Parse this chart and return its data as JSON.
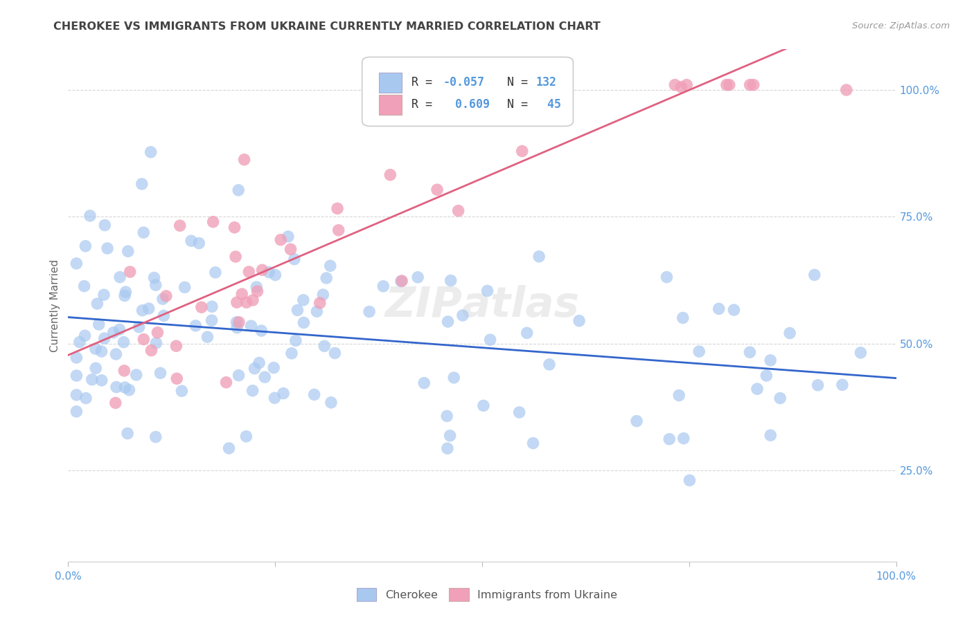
{
  "title": "CHEROKEE VS IMMIGRANTS FROM UKRAINE CURRENTLY MARRIED CORRELATION CHART",
  "source": "Source: ZipAtlas.com",
  "ylabel": "Currently Married",
  "r1": "-0.057",
  "n1": "132",
  "r2": "0.609",
  "n2": "45",
  "blue_color": "#A8C8F0",
  "pink_color": "#F0A0B8",
  "blue_line_color": "#3366CC",
  "pink_line_color": "#E06080",
  "grid_color": "#CCCCCC",
  "title_color": "#444444",
  "tick_color": "#5599DD",
  "source_color": "#999999",
  "background_color": "#FFFFFF",
  "legend_label1": "Cherokee",
  "legend_label2": "Immigrants from Ukraine",
  "xlim": [
    0.0,
    1.0
  ],
  "ylim": [
    0.07,
    1.08
  ],
  "ytick_vals": [
    0.25,
    0.5,
    0.75,
    1.0
  ],
  "ytick_labels": [
    "25.0%",
    "50.0%",
    "75.0%",
    "100.0%"
  ],
  "xtick_vals": [
    0.0,
    1.0
  ],
  "xtick_labels": [
    "0.0%",
    "100.0%"
  ]
}
